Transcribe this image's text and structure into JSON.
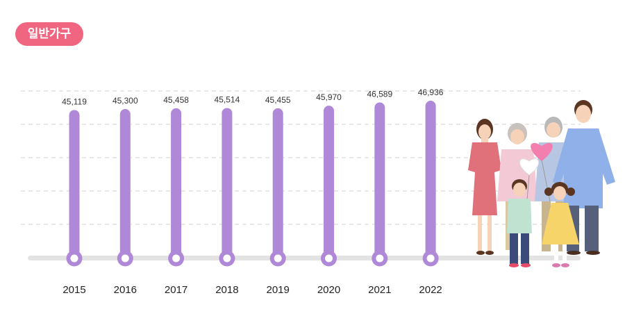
{
  "badge": {
    "label": "일반가구"
  },
  "colors": {
    "bar": "#b088d8",
    "badge": "#f0657f",
    "baseline": "#e3e3e3",
    "grid": "#cfcfcf"
  },
  "illustration": {
    "name": "family-illustration"
  },
  "chart_data": {
    "type": "bar",
    "categories": [
      "2015",
      "2016",
      "2017",
      "2018",
      "2019",
      "2020",
      "2021",
      "2022"
    ],
    "values": [
      45119,
      45300,
      45458,
      45514,
      45455,
      45970,
      46589,
      46936
    ],
    "value_labels": [
      "45,119",
      "45,300",
      "45,458",
      "45,514",
      "45,455",
      "45,970",
      "46,589",
      "46,936"
    ],
    "grid": true
  }
}
